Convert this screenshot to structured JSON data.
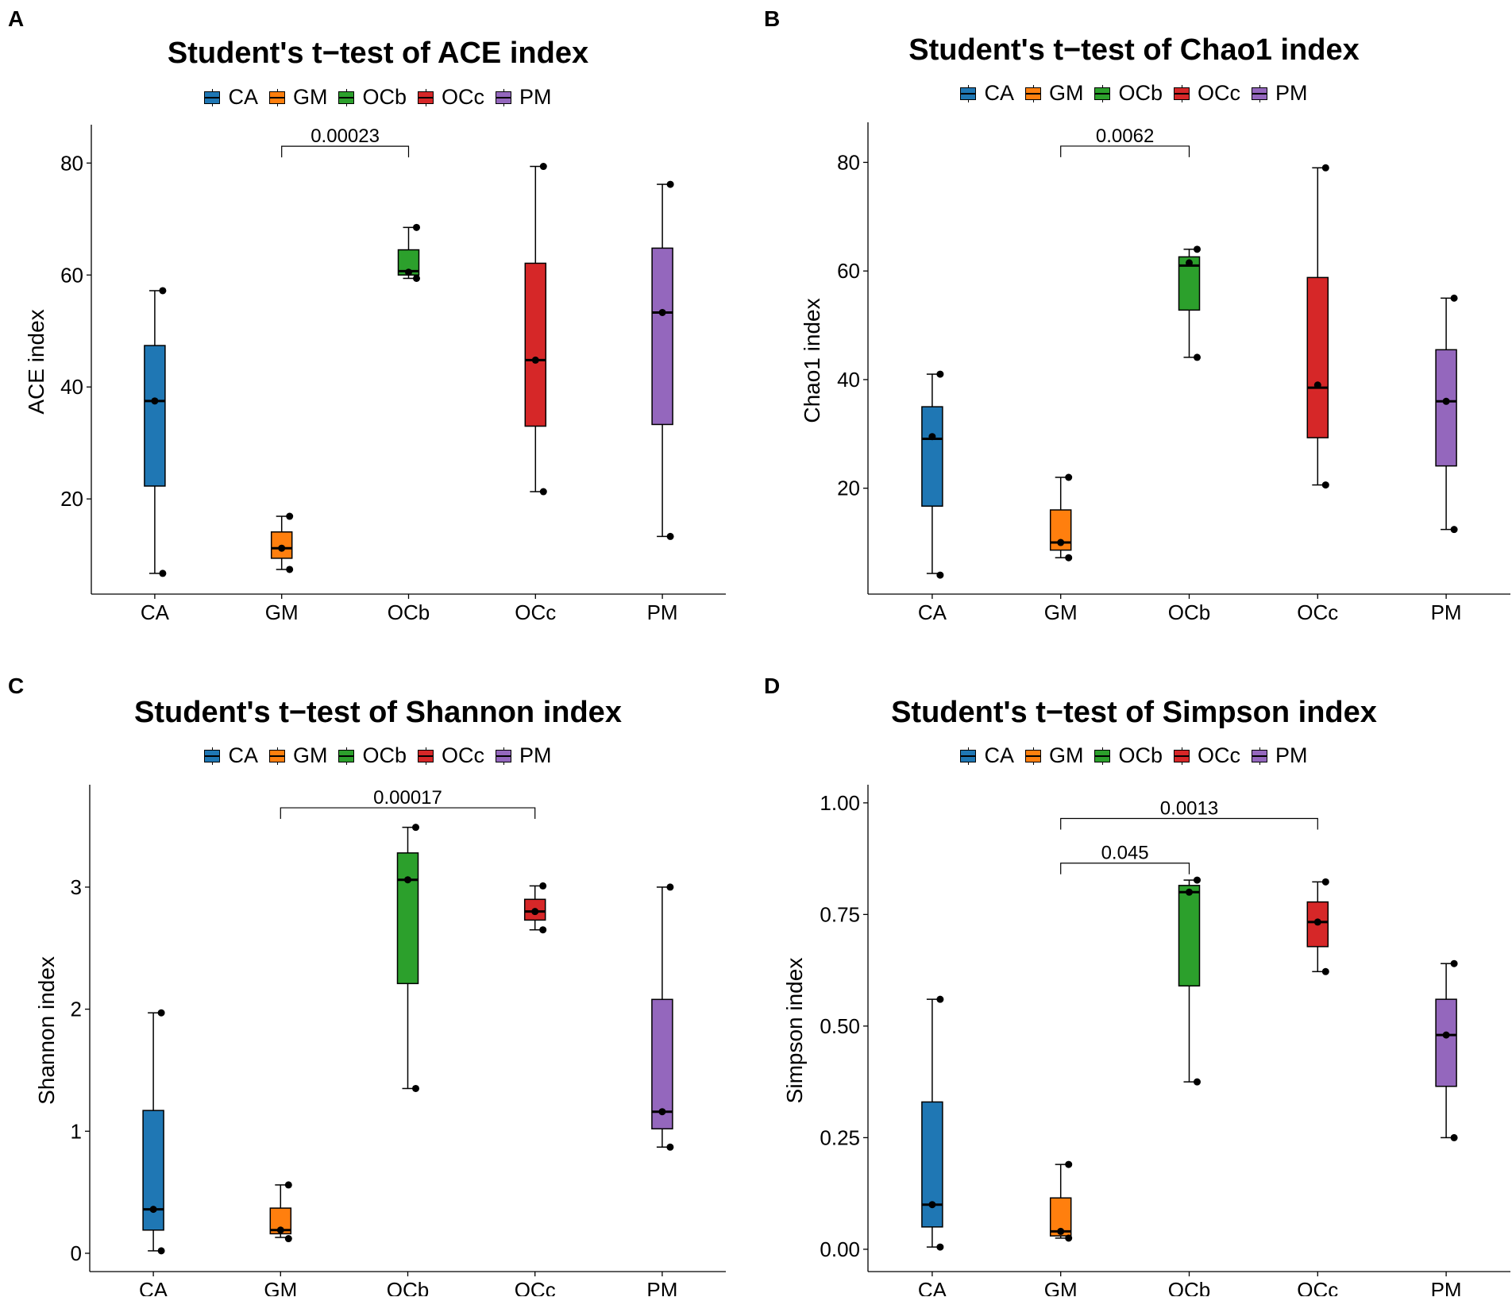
{
  "figure": {
    "background": "#ffffff"
  },
  "colors": {
    "CA": "#1f77b4",
    "GM": "#ff7f0e",
    "OCb": "#2ca02c",
    "OCc": "#d62728",
    "PM": "#9467bd"
  },
  "legend": [
    "CA",
    "GM",
    "OCb",
    "OCc",
    "PM"
  ],
  "chart_data": [
    {
      "panel": "A",
      "title": "Student's t−test of ACE index",
      "type": "box",
      "ylabel": "ACE index",
      "xlabel": "",
      "categories": [
        "CA",
        "GM",
        "OCb",
        "OCc",
        "PM"
      ],
      "yticks": [
        20,
        40,
        60,
        80
      ],
      "ytick_labels": [
        "20",
        "40",
        "60",
        "80"
      ],
      "ylim": [
        3,
        86
      ],
      "boxes": [
        {
          "group": "CA",
          "whisker_low": 6.7,
          "q1": 22.3,
          "median": 37.5,
          "q3": 47.4,
          "whisker_high": 57.2,
          "points": [
            6.7,
            37.5,
            57.2
          ]
        },
        {
          "group": "GM",
          "whisker_low": 7.4,
          "q1": 9.4,
          "median": 11.2,
          "q3": 14.1,
          "whisker_high": 16.9,
          "points": [
            7.4,
            11.2,
            16.9
          ]
        },
        {
          "group": "OCb",
          "whisker_low": 59.4,
          "q1": 60.0,
          "median": 60.7,
          "q3": 64.5,
          "whisker_high": 68.5,
          "points": [
            59.4,
            60.5,
            68.5
          ]
        },
        {
          "group": "OCc",
          "whisker_low": 21.3,
          "q1": 33.0,
          "median": 44.8,
          "q3": 62.1,
          "whisker_high": 79.4,
          "points": [
            21.3,
            44.8,
            79.4
          ]
        },
        {
          "group": "PM",
          "whisker_low": 13.3,
          "q1": 33.3,
          "median": 53.3,
          "q3": 64.8,
          "whisker_high": 76.2,
          "points": [
            13.3,
            53.3,
            76.2
          ]
        }
      ],
      "comparisons": [
        {
          "from": "GM",
          "to": "OCb",
          "y": 83,
          "label": "0.00023"
        }
      ]
    },
    {
      "panel": "B",
      "title": "Student's t−test of Chao1 index",
      "type": "box",
      "ylabel": "Chao1 index",
      "xlabel": "",
      "categories": [
        "CA",
        "GM",
        "OCb",
        "OCc",
        "PM"
      ],
      "yticks": [
        20,
        40,
        60,
        80
      ],
      "ytick_labels": [
        "20",
        "40",
        "60",
        "80"
      ],
      "ylim": [
        0.5,
        86.5
      ],
      "boxes": [
        {
          "group": "CA",
          "whisker_low": 4.3,
          "q1": 16.7,
          "median": 29.1,
          "q3": 35.0,
          "whisker_high": 41.0,
          "points": [
            4.0,
            29.5,
            41.0
          ]
        },
        {
          "group": "GM",
          "whisker_low": 7.2,
          "q1": 8.6,
          "median": 10.0,
          "q3": 16.0,
          "whisker_high": 22.0,
          "points": [
            7.2,
            10.0,
            22.0
          ]
        },
        {
          "group": "OCb",
          "whisker_low": 44.1,
          "q1": 52.8,
          "median": 61.0,
          "q3": 62.6,
          "whisker_high": 64.0,
          "points": [
            44.1,
            61.5,
            64.0
          ]
        },
        {
          "group": "OCc",
          "whisker_low": 20.6,
          "q1": 29.3,
          "median": 38.5,
          "q3": 58.8,
          "whisker_high": 79.0,
          "points": [
            20.6,
            39.0,
            79.0
          ]
        },
        {
          "group": "PM",
          "whisker_low": 12.4,
          "q1": 24.1,
          "median": 36.0,
          "q3": 45.5,
          "whisker_high": 55.0,
          "points": [
            12.4,
            36.0,
            55.0
          ]
        }
      ],
      "comparisons": [
        {
          "from": "GM",
          "to": "OCb",
          "y": 83,
          "label": "0.0062"
        }
      ]
    },
    {
      "panel": "C",
      "title": "Student's t−test of Shannon index",
      "type": "box",
      "ylabel": "Shannon index",
      "xlabel": "",
      "categories": [
        "CA",
        "GM",
        "OCb",
        "OCc",
        "PM"
      ],
      "yticks": [
        0,
        1,
        2,
        3
      ],
      "ytick_labels": [
        "0",
        "1",
        "2",
        "3"
      ],
      "ylim": [
        -0.15,
        3.8
      ],
      "boxes": [
        {
          "group": "CA",
          "whisker_low": 0.02,
          "q1": 0.19,
          "median": 0.36,
          "q3": 1.17,
          "whisker_high": 1.97,
          "points": [
            0.02,
            0.36,
            1.97
          ]
        },
        {
          "group": "GM",
          "whisker_low": 0.13,
          "q1": 0.16,
          "median": 0.19,
          "q3": 0.37,
          "whisker_high": 0.56,
          "points": [
            0.12,
            0.19,
            0.56
          ]
        },
        {
          "group": "OCb",
          "whisker_low": 1.35,
          "q1": 2.21,
          "median": 3.06,
          "q3": 3.28,
          "whisker_high": 3.49,
          "points": [
            1.35,
            3.06,
            3.49
          ]
        },
        {
          "group": "OCc",
          "whisker_low": 2.65,
          "q1": 2.73,
          "median": 2.8,
          "q3": 2.9,
          "whisker_high": 3.01,
          "points": [
            2.65,
            2.8,
            3.01
          ]
        },
        {
          "group": "PM",
          "whisker_low": 0.87,
          "q1": 1.02,
          "median": 1.16,
          "q3": 2.08,
          "whisker_high": 3.0,
          "points": [
            0.87,
            1.16,
            3.0
          ]
        }
      ],
      "comparisons": [
        {
          "from": "GM",
          "to": "OCc",
          "y": 3.65,
          "label": "0.00017"
        }
      ]
    },
    {
      "panel": "D",
      "title": "Student's t−test of Simpson index",
      "type": "box",
      "ylabel": "Simpson index",
      "xlabel": "",
      "categories": [
        "CA",
        "GM",
        "OCb",
        "OCc",
        "PM"
      ],
      "yticks": [
        0,
        0.25,
        0.5,
        0.75,
        1
      ],
      "ytick_labels": [
        "0.00",
        "0.25",
        "0.50",
        "0.75",
        "1.00"
      ],
      "ylim": [
        -0.05,
        1.03
      ],
      "boxes": [
        {
          "group": "CA",
          "whisker_low": 0.005,
          "q1": 0.05,
          "median": 0.1,
          "q3": 0.33,
          "whisker_high": 0.56,
          "points": [
            0.005,
            0.1,
            0.56
          ]
        },
        {
          "group": "GM",
          "whisker_low": 0.025,
          "q1": 0.03,
          "median": 0.04,
          "q3": 0.115,
          "whisker_high": 0.19,
          "points": [
            0.025,
            0.04,
            0.19
          ]
        },
        {
          "group": "OCb",
          "whisker_low": 0.375,
          "q1": 0.59,
          "median": 0.8,
          "q3": 0.815,
          "whisker_high": 0.827,
          "points": [
            0.375,
            0.8,
            0.827
          ]
        },
        {
          "group": "OCc",
          "whisker_low": 0.622,
          "q1": 0.678,
          "median": 0.733,
          "q3": 0.778,
          "whisker_high": 0.823,
          "points": [
            0.622,
            0.733,
            0.823
          ]
        },
        {
          "group": "PM",
          "whisker_low": 0.25,
          "q1": 0.365,
          "median": 0.48,
          "q3": 0.56,
          "whisker_high": 0.64,
          "points": [
            0.25,
            0.48,
            0.64
          ]
        }
      ],
      "comparisons": [
        {
          "from": "GM",
          "to": "OCb",
          "y": 0.865,
          "label": "0.045"
        },
        {
          "from": "GM",
          "to": "OCc",
          "y": 0.965,
          "label": "0.0013"
        }
      ]
    }
  ]
}
